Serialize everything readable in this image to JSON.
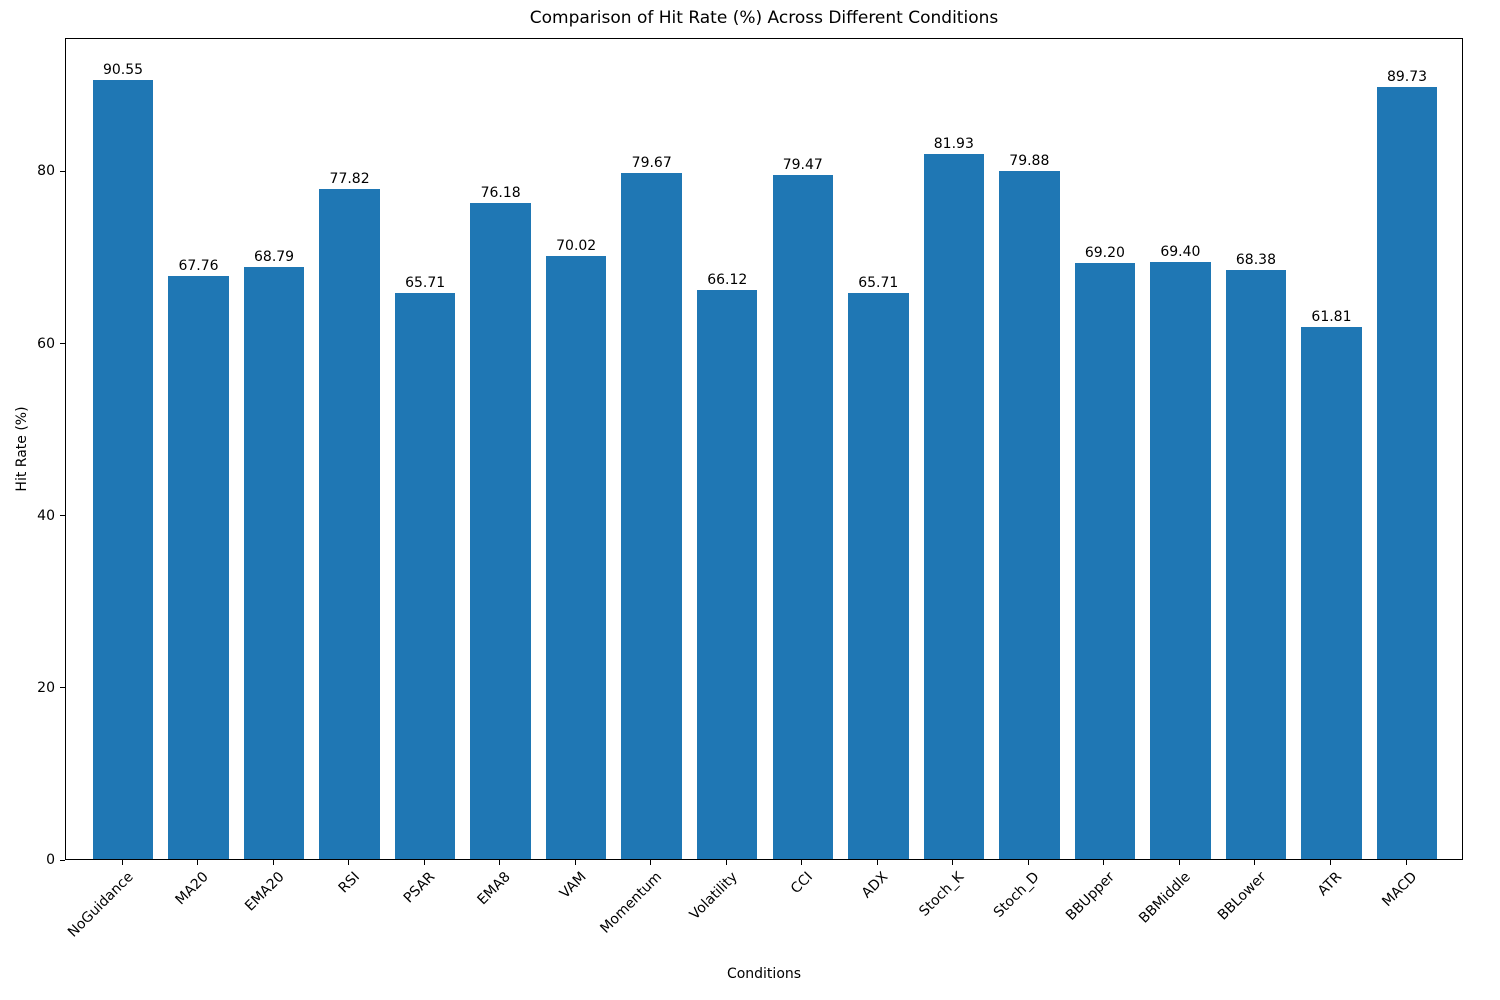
{
  "chart_data": {
    "type": "bar",
    "title": "Comparison of Hit Rate (%) Across Different Conditions",
    "xlabel": "Conditions",
    "ylabel": "Hit Rate (%)",
    "categories": [
      "NoGuidance",
      "MA20",
      "EMA20",
      "RSI",
      "PSAR",
      "EMA8",
      "VAM",
      "Momentum",
      "Volatility",
      "CCI",
      "ADX",
      "Stoch_K",
      "Stoch_D",
      "BBUpper",
      "BBMiddle",
      "BBLower",
      "ATR",
      "MACD"
    ],
    "values": [
      90.55,
      67.76,
      68.79,
      77.82,
      65.71,
      76.18,
      70.02,
      79.67,
      66.12,
      79.47,
      65.71,
      81.93,
      79.88,
      69.2,
      69.4,
      68.38,
      61.81,
      89.73
    ],
    "value_labels": [
      "90.55",
      "67.76",
      "68.79",
      "77.82",
      "65.71",
      "76.18",
      "70.02",
      "79.67",
      "66.12",
      "79.47",
      "65.71",
      "81.93",
      "79.88",
      "69.20",
      "69.40",
      "68.38",
      "61.81",
      "89.73"
    ],
    "ylim": [
      0,
      95.5
    ],
    "yticks": [
      0,
      20,
      40,
      60,
      80
    ],
    "bar_color": "#1f77b4",
    "grid": false,
    "legend_position": "none"
  }
}
